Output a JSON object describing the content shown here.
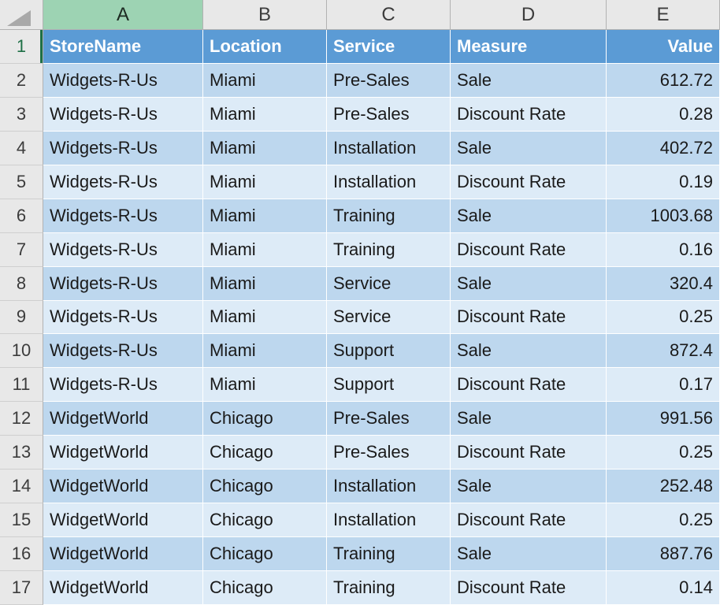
{
  "colors": {
    "header_fill": "#5B9BD5",
    "header_text": "#FFFFFF",
    "band_dark": "#BDD7EE",
    "band_light": "#DDEBF7",
    "selected_col_header_fill": "#9DD3B3",
    "selection_accent": "#1E6F46",
    "frame_fill": "#E8E8E8",
    "frame_border": "#B2B2B2",
    "frame_text": "#3C3C3C",
    "cell_text": "#1A1A1A",
    "gridline": "#FFFFFF"
  },
  "grid": {
    "selected_column": "A",
    "selected_row": "1",
    "column_headers": [
      "A",
      "B",
      "C",
      "D",
      "E"
    ],
    "rows": [
      {
        "num": "1",
        "header": true,
        "cells": [
          "StoreName",
          "Location",
          "Service",
          "Measure",
          "Value"
        ]
      },
      {
        "num": "2",
        "header": false,
        "cells": [
          "Widgets-R-Us",
          "Miami",
          "Pre-Sales",
          "Sale",
          "612.72"
        ]
      },
      {
        "num": "3",
        "header": false,
        "cells": [
          "Widgets-R-Us",
          "Miami",
          "Pre-Sales",
          "Discount Rate",
          "0.28"
        ]
      },
      {
        "num": "4",
        "header": false,
        "cells": [
          "Widgets-R-Us",
          "Miami",
          "Installation",
          "Sale",
          "402.72"
        ]
      },
      {
        "num": "5",
        "header": false,
        "cells": [
          "Widgets-R-Us",
          "Miami",
          "Installation",
          "Discount Rate",
          "0.19"
        ]
      },
      {
        "num": "6",
        "header": false,
        "cells": [
          "Widgets-R-Us",
          "Miami",
          "Training",
          "Sale",
          "1003.68"
        ]
      },
      {
        "num": "7",
        "header": false,
        "cells": [
          "Widgets-R-Us",
          "Miami",
          "Training",
          "Discount Rate",
          "0.16"
        ]
      },
      {
        "num": "8",
        "header": false,
        "cells": [
          "Widgets-R-Us",
          "Miami",
          "Service",
          "Sale",
          "320.4"
        ]
      },
      {
        "num": "9",
        "header": false,
        "cells": [
          "Widgets-R-Us",
          "Miami",
          "Service",
          "Discount Rate",
          "0.25"
        ]
      },
      {
        "num": "10",
        "header": false,
        "cells": [
          "Widgets-R-Us",
          "Miami",
          "Support",
          "Sale",
          "872.4"
        ]
      },
      {
        "num": "11",
        "header": false,
        "cells": [
          "Widgets-R-Us",
          "Miami",
          "Support",
          "Discount Rate",
          "0.17"
        ]
      },
      {
        "num": "12",
        "header": false,
        "cells": [
          "WidgetWorld",
          "Chicago",
          "Pre-Sales",
          "Sale",
          "991.56"
        ]
      },
      {
        "num": "13",
        "header": false,
        "cells": [
          "WidgetWorld",
          "Chicago",
          "Pre-Sales",
          "Discount Rate",
          "0.25"
        ]
      },
      {
        "num": "14",
        "header": false,
        "cells": [
          "WidgetWorld",
          "Chicago",
          "Installation",
          "Sale",
          "252.48"
        ]
      },
      {
        "num": "15",
        "header": false,
        "cells": [
          "WidgetWorld",
          "Chicago",
          "Installation",
          "Discount Rate",
          "0.25"
        ]
      },
      {
        "num": "16",
        "header": false,
        "cells": [
          "WidgetWorld",
          "Chicago",
          "Training",
          "Sale",
          "887.76"
        ]
      },
      {
        "num": "17",
        "header": false,
        "cells": [
          "WidgetWorld",
          "Chicago",
          "Training",
          "Discount Rate",
          "0.14"
        ]
      }
    ]
  }
}
